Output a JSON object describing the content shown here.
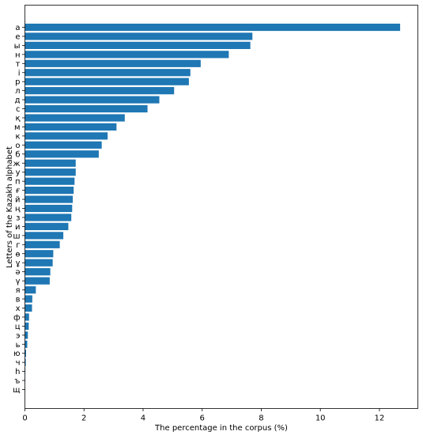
{
  "chart_data": {
    "type": "bar",
    "orientation": "horizontal",
    "title": "",
    "xlabel": "The percentage in the corpus (%)",
    "ylabel": "Letters of the Kazakh alphabet",
    "xlim": [
      0,
      13.3
    ],
    "xticks": [
      0,
      2,
      4,
      6,
      8,
      10,
      12
    ],
    "grid": false,
    "bar_color": "#1f77b4",
    "categories": [
      "а",
      "е",
      "ы",
      "н",
      "т",
      "і",
      "р",
      "л",
      "д",
      "с",
      "қ",
      "м",
      "к",
      "о",
      "б",
      "ж",
      "у",
      "п",
      "ғ",
      "й",
      "ң",
      "з",
      "и",
      "ш",
      "г",
      "ө",
      "ұ",
      "ә",
      "ү",
      "я",
      "в",
      "х",
      "ф",
      "ц",
      "э",
      "ь",
      "ю",
      "ч",
      "һ",
      "ъ",
      "щ"
    ],
    "values": [
      12.7,
      7.7,
      7.63,
      6.9,
      5.95,
      5.6,
      5.55,
      5.05,
      4.55,
      4.15,
      3.38,
      3.1,
      2.8,
      2.6,
      2.5,
      1.72,
      1.72,
      1.68,
      1.65,
      1.62,
      1.6,
      1.57,
      1.47,
      1.3,
      1.18,
      0.96,
      0.94,
      0.86,
      0.84,
      0.37,
      0.25,
      0.24,
      0.14,
      0.13,
      0.1,
      0.08,
      0.04,
      0.03,
      0.015,
      0.01,
      0.005
    ]
  }
}
